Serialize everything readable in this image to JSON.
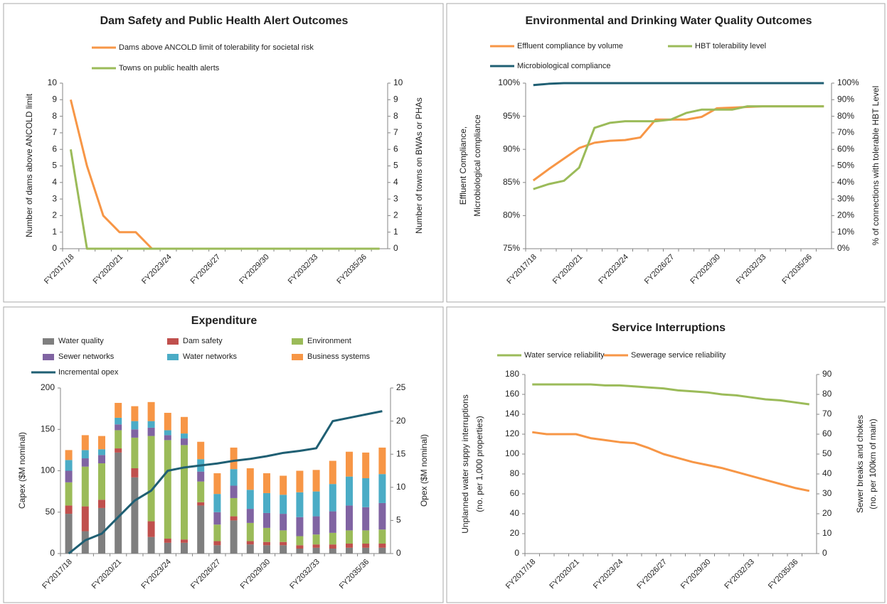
{
  "chart_data": [
    {
      "type": "line",
      "title": "Dam Safety and Public Health Alert Outcomes",
      "ylabel": [
        "Number of dams above ANCOLD limit"
      ],
      "y2label": [
        "Number of towns on BWAs or PHAs"
      ],
      "categories": [
        "FY2017/18",
        null,
        null,
        "FY2020/21",
        null,
        null,
        "FY2023/24",
        null,
        null,
        "FY2026/27",
        null,
        null,
        "FY2029/30",
        null,
        null,
        "FY2032/33",
        null,
        null,
        "FY2035/36",
        null
      ],
      "ylim": [
        0,
        10
      ],
      "yticks": [
        0,
        1,
        2,
        3,
        4,
        5,
        6,
        7,
        8,
        9,
        10
      ],
      "y2lim": [
        0,
        10
      ],
      "y2ticks": [
        0,
        1,
        2,
        3,
        4,
        5,
        6,
        7,
        8,
        9,
        10
      ],
      "grid": false,
      "series": [
        {
          "name": "Dams above ANCOLD limit of tolerability for societal risk",
          "color": "#f79646",
          "values": [
            9,
            5,
            2,
            1,
            1,
            0,
            0,
            0,
            0,
            0,
            0,
            0,
            0,
            0,
            0,
            0,
            0,
            0,
            0,
            0
          ]
        },
        {
          "name": "Towns on public health alerts",
          "color": "#9bbb59",
          "axis": "y2",
          "values": [
            6,
            0,
            0,
            0,
            0,
            0,
            0,
            0,
            0,
            0,
            0,
            0,
            0,
            0,
            0,
            0,
            0,
            0,
            0,
            0
          ]
        }
      ]
    },
    {
      "type": "line",
      "title": "Environmental and Drinking Water Quality Outcomes",
      "ylabel": [
        "Effluent Compliance,",
        "Microbiological compliance"
      ],
      "y2label": [
        "% of connections with tolerable HBT Level"
      ],
      "categories": [
        "FY2017/18",
        null,
        null,
        "FY2020/21",
        null,
        null,
        "FY2023/24",
        null,
        null,
        "FY2026/27",
        null,
        null,
        "FY2029/30",
        null,
        null,
        "FY2032/33",
        null,
        null,
        "FY2035/36",
        null
      ],
      "ylim": [
        75,
        100
      ],
      "yticks": [
        {
          "value": 75,
          "label": "75%"
        },
        {
          "value": 80,
          "label": "80%"
        },
        {
          "value": 85,
          "label": "85%"
        },
        {
          "value": 90,
          "label": "90%"
        },
        {
          "value": 95,
          "label": "95%"
        },
        {
          "value": 100,
          "label": "100%"
        }
      ],
      "y2lim": [
        0,
        100
      ],
      "y2ticks": [
        {
          "value": 0,
          "label": "0%"
        },
        {
          "value": 10,
          "label": "10%"
        },
        {
          "value": 20,
          "label": "20%"
        },
        {
          "value": 30,
          "label": "30%"
        },
        {
          "value": 40,
          "label": "40%"
        },
        {
          "value": 50,
          "label": "50%"
        },
        {
          "value": 60,
          "label": "60%"
        },
        {
          "value": 70,
          "label": "70%"
        },
        {
          "value": 80,
          "label": "80%"
        },
        {
          "value": 90,
          "label": "90%"
        },
        {
          "value": 100,
          "label": "100%"
        }
      ],
      "grid": false,
      "series": [
        {
          "name": "Effluent compliance by volume",
          "color": "#f79646",
          "values": [
            85.3,
            87,
            88.6,
            90.2,
            91,
            91.3,
            91.4,
            91.8,
            94.5,
            94.5,
            94.5,
            94.9,
            96.2,
            96.3,
            96.4,
            96.5,
            96.5,
            96.5,
            96.5,
            96.5
          ]
        },
        {
          "name": "HBT tolerability level",
          "color": "#9bbb59",
          "axis": "y2",
          "values": [
            36,
            39,
            41,
            49,
            73,
            76,
            77,
            77,
            77,
            78,
            82,
            84,
            84,
            84,
            86,
            86,
            86,
            86,
            86,
            86
          ]
        },
        {
          "name": "Microbiological compliance",
          "color": "#1f5f73",
          "values": [
            99.7,
            99.9,
            100,
            100,
            100,
            100,
            100,
            100,
            100,
            100,
            100,
            100,
            100,
            100,
            100,
            100,
            100,
            100,
            100,
            100
          ]
        }
      ]
    },
    {
      "type": "bar",
      "stacked": true,
      "title": "Expenditure",
      "ylabel": [
        "Capex ($M nominal)"
      ],
      "y2label": [
        "Opex ($M nominal)"
      ],
      "categories": [
        "FY2017/18",
        null,
        null,
        "FY2020/21",
        null,
        null,
        "FY2023/24",
        null,
        null,
        "FY2026/27",
        null,
        null,
        "FY2029/30",
        null,
        null,
        "FY2032/33",
        null,
        null,
        "FY2035/36",
        null
      ],
      "ylim": [
        0,
        200
      ],
      "yticks": [
        0,
        50,
        100,
        150,
        200
      ],
      "y2lim": [
        0,
        25
      ],
      "y2ticks": [
        0,
        5,
        10,
        15,
        20,
        25
      ],
      "grid": false,
      "series": [
        {
          "name": "Water quality",
          "color": "#7f7f7f",
          "values": [
            48,
            27,
            55,
            122,
            92,
            20,
            13,
            13,
            58,
            10,
            40,
            11,
            10,
            10,
            6,
            7,
            6,
            7,
            7,
            7
          ]
        },
        {
          "name": "Dam safety",
          "color": "#c0504d",
          "values": [
            10,
            30,
            10,
            5,
            11,
            19,
            5,
            4,
            4,
            5,
            5,
            4,
            4,
            4,
            4,
            4,
            5,
            5,
            5,
            5
          ]
        },
        {
          "name": "Environment",
          "color": "#9bbb59",
          "values": [
            28,
            48,
            44,
            22,
            37,
            103,
            119,
            114,
            25,
            20,
            22,
            22,
            17,
            14,
            11,
            12,
            14,
            16,
            16,
            17
          ]
        },
        {
          "name": "Sewer networks",
          "color": "#8064a2",
          "values": [
            14,
            10,
            10,
            7,
            10,
            10,
            6,
            8,
            12,
            15,
            15,
            17,
            18,
            20,
            23,
            22,
            26,
            30,
            28,
            32
          ]
        },
        {
          "name": "Water networks",
          "color": "#4bacc6",
          "values": [
            13,
            10,
            7,
            8,
            10,
            8,
            6,
            6,
            15,
            22,
            20,
            23,
            24,
            23,
            30,
            30,
            33,
            35,
            35,
            35
          ]
        },
        {
          "name": "Business systems",
          "color": "#f79646",
          "values": [
            12,
            18,
            16,
            18,
            18,
            23,
            21,
            20,
            21,
            25,
            26,
            26,
            24,
            23,
            26,
            26,
            28,
            30,
            31,
            32
          ]
        },
        {
          "name": "Incremental opex",
          "color": "#1f5f73",
          "type": "line",
          "axis": "y2",
          "values": [
            0,
            2,
            3,
            5.5,
            8,
            9.5,
            12.5,
            13,
            13.3,
            13.6,
            14,
            14.3,
            14.7,
            15.2,
            15.5,
            15.9,
            20,
            20.5,
            21,
            21.5
          ]
        }
      ]
    },
    {
      "type": "line",
      "title": "Service Interruptions",
      "ylabel": [
        "Unplanned water suppy interruptions",
        "(no. per 1,000 properties)"
      ],
      "y2label": [
        "Sewer breaks and chokes",
        "(no. per 100km of main)"
      ],
      "categories": [
        "FY2017/18",
        null,
        null,
        "FY2020/21",
        null,
        null,
        "FY2023/24",
        null,
        null,
        "FY2026/27",
        null,
        null,
        "FY2029/30",
        null,
        null,
        "FY2032/33",
        null,
        null,
        "FY2035/36",
        null
      ],
      "ylim": [
        0,
        180
      ],
      "yticks": [
        0,
        20,
        40,
        60,
        80,
        100,
        120,
        140,
        160,
        180
      ],
      "y2lim": [
        0,
        90
      ],
      "y2ticks": [
        0,
        10,
        20,
        30,
        40,
        50,
        60,
        70,
        80,
        90
      ],
      "grid": false,
      "series": [
        {
          "name": "Water service reliability",
          "color": "#9bbb59",
          "values": [
            170,
            170,
            170,
            170,
            170,
            169,
            169,
            168,
            167,
            166,
            164,
            163,
            162,
            160,
            159,
            157,
            155,
            154,
            152,
            150
          ]
        },
        {
          "name": "Sewerage service reliability",
          "color": "#f79646",
          "axis": "y2",
          "values": [
            61,
            60,
            60,
            60,
            58,
            57,
            56,
            55.5,
            53,
            50,
            48,
            46,
            44.5,
            43,
            41,
            39,
            37,
            35,
            33,
            31.5
          ]
        }
      ]
    }
  ]
}
